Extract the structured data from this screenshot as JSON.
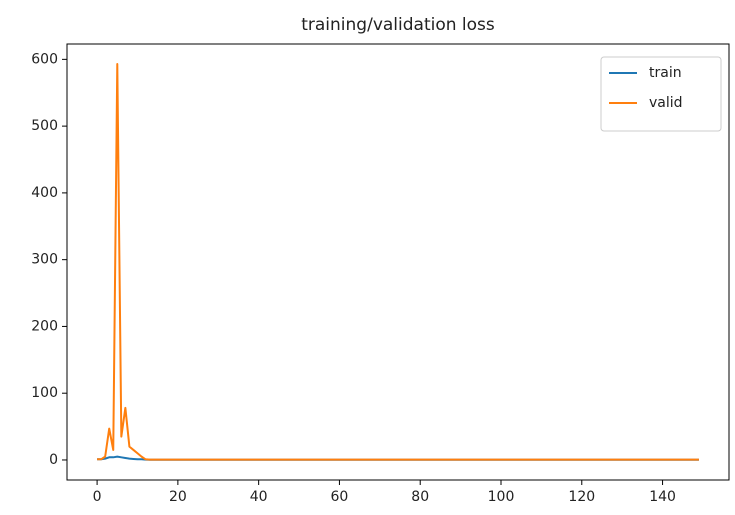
{
  "chart_data": {
    "type": "line",
    "title": "training/validation loss",
    "x": [
      0,
      1,
      2,
      3,
      4,
      5,
      6,
      7,
      8,
      9,
      10,
      11,
      12,
      13,
      14,
      15,
      16,
      17,
      18,
      19,
      20,
      21,
      22,
      23,
      24,
      25,
      26,
      27,
      28,
      29,
      30,
      31,
      32,
      33,
      34,
      35,
      36,
      37,
      38,
      39,
      40,
      41,
      42,
      43,
      44,
      45,
      46,
      47,
      48,
      49,
      50,
      51,
      52,
      53,
      54,
      55,
      56,
      57,
      58,
      59,
      60,
      61,
      62,
      63,
      64,
      65,
      66,
      67,
      68,
      69,
      70,
      71,
      72,
      73,
      74,
      75,
      76,
      77,
      78,
      79,
      80,
      81,
      82,
      83,
      84,
      85,
      86,
      87,
      88,
      89,
      90,
      91,
      92,
      93,
      94,
      95,
      96,
      97,
      98,
      99,
      100,
      101,
      102,
      103,
      104,
      105,
      106,
      107,
      108,
      109,
      110,
      111,
      112,
      113,
      114,
      115,
      116,
      117,
      118,
      119,
      120,
      121,
      122,
      123,
      124,
      125,
      126,
      127,
      128,
      129,
      130,
      131,
      132,
      133,
      134,
      135,
      136,
      137,
      138,
      139,
      140,
      141,
      142,
      143,
      144,
      145,
      146,
      147,
      148,
      149
    ],
    "series": [
      {
        "name": "train",
        "color": "#1f77b4",
        "values": [
          1,
          1,
          2,
          4,
          4,
          5,
          4,
          3,
          2,
          1.5,
          1,
          1,
          0.5,
          0.3,
          0.3,
          0.3,
          0.3,
          0.3,
          0.3,
          0.3,
          0.3,
          0.3,
          0.3,
          0.3,
          0.3,
          0.3,
          0.3,
          0.3,
          0.3,
          0.3,
          0.3,
          0.3,
          0.3,
          0.3,
          0.3,
          0.3,
          0.3,
          0.3,
          0.3,
          0.3,
          0.3,
          0.3,
          0.3,
          0.3,
          0.3,
          0.3,
          0.3,
          0.3,
          0.3,
          0.3,
          0.3,
          0.3,
          0.3,
          0.3,
          0.3,
          0.3,
          0.3,
          0.3,
          0.3,
          0.3,
          0.3,
          0.3,
          0.3,
          0.3,
          0.3,
          0.3,
          0.3,
          0.3,
          0.3,
          0.3,
          0.3,
          0.3,
          0.3,
          0.3,
          0.3,
          0.3,
          0.3,
          0.3,
          0.3,
          0.3,
          0.3,
          0.3,
          0.3,
          0.3,
          0.3,
          0.3,
          0.3,
          0.3,
          0.3,
          0.3,
          0.3,
          0.3,
          0.3,
          0.3,
          0.3,
          0.3,
          0.3,
          0.3,
          0.3,
          0.3,
          0.3,
          0.3,
          0.3,
          0.3,
          0.3,
          0.3,
          0.3,
          0.3,
          0.3,
          0.3,
          0.3,
          0.3,
          0.3,
          0.3,
          0.3,
          0.3,
          0.3,
          0.3,
          0.3,
          0.3,
          0.3,
          0.3,
          0.3,
          0.3,
          0.3,
          0.3,
          0.3,
          0.3,
          0.3,
          0.3,
          0.3,
          0.3,
          0.3,
          0.3,
          0.3,
          0.3,
          0.3,
          0.3,
          0.3,
          0.3,
          0.3,
          0.3,
          0.3,
          0.3,
          0.3,
          0.3,
          0.3,
          0.3,
          0.3,
          0.3
        ]
      },
      {
        "name": "valid",
        "color": "#ff7f0e",
        "values": [
          1,
          1,
          5,
          47,
          15,
          593,
          35,
          78,
          20,
          15,
          10,
          5,
          1,
          0.5,
          0.5,
          0.5,
          0.5,
          0.5,
          0.5,
          0.5,
          0.5,
          0.5,
          0.5,
          0.5,
          0.5,
          0.5,
          0.5,
          0.5,
          0.5,
          0.5,
          0.5,
          0.5,
          0.5,
          0.5,
          0.5,
          0.5,
          0.5,
          0.5,
          0.5,
          0.5,
          0.5,
          0.5,
          0.5,
          0.5,
          0.5,
          0.5,
          0.5,
          0.5,
          0.5,
          0.5,
          0.5,
          0.5,
          0.5,
          0.5,
          0.5,
          0.5,
          0.5,
          0.5,
          0.5,
          0.5,
          0.5,
          0.5,
          0.5,
          0.5,
          0.5,
          0.5,
          0.5,
          0.5,
          0.5,
          0.5,
          0.5,
          0.5,
          0.5,
          0.5,
          0.5,
          0.5,
          0.5,
          0.5,
          0.5,
          0.5,
          0.5,
          0.5,
          0.5,
          0.5,
          0.5,
          0.5,
          0.5,
          0.5,
          0.5,
          0.5,
          0.5,
          0.5,
          0.5,
          0.5,
          0.5,
          0.5,
          0.5,
          0.5,
          0.5,
          0.5,
          0.5,
          0.5,
          0.5,
          0.5,
          0.5,
          0.5,
          0.5,
          0.5,
          0.5,
          0.5,
          0.5,
          0.5,
          0.5,
          0.5,
          0.5,
          0.5,
          0.5,
          0.5,
          0.5,
          0.5,
          0.5,
          0.5,
          0.5,
          0.5,
          0.5,
          0.5,
          0.5,
          0.5,
          0.5,
          0.5,
          0.5,
          0.5,
          0.5,
          0.5,
          0.5,
          0.5,
          0.5,
          0.5,
          0.5,
          0.5,
          0.5,
          0.5,
          0.5,
          0.5,
          0.5,
          0.5,
          0.5,
          0.5,
          0.5,
          0.5
        ]
      }
    ],
    "xlim": [
      -7.45,
      156.45
    ],
    "xticks": [
      0,
      20,
      40,
      60,
      80,
      100,
      120,
      140
    ],
    "ylim": [
      -30,
      623
    ],
    "yticks": [
      0,
      100,
      200,
      300,
      400,
      500,
      600
    ],
    "legend": "upper right",
    "grid": false
  }
}
